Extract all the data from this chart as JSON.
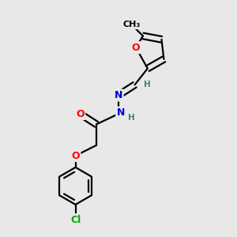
{
  "bg_color": "#e8e8e8",
  "atom_colors": {
    "O": "#ff0000",
    "N": "#0000cc",
    "Cl": "#00aa00",
    "H": "#408080",
    "C": "#000000"
  },
  "figsize": [
    3.0,
    3.0
  ],
  "dpi": 100
}
